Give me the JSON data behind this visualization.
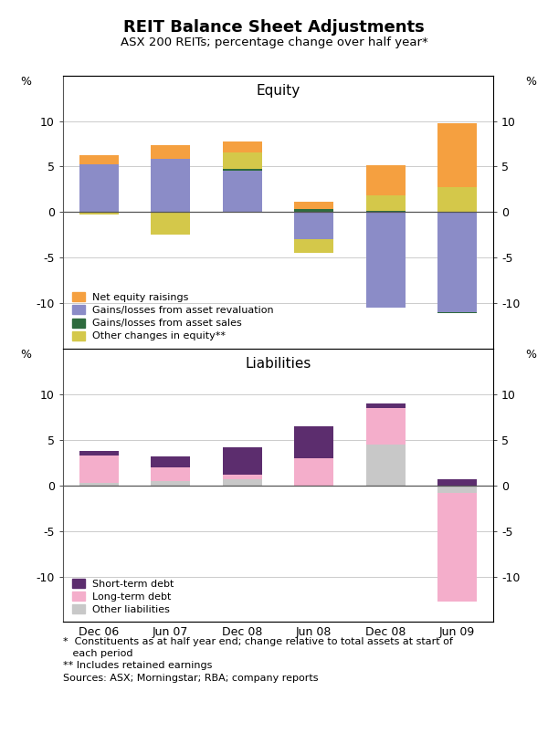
{
  "title": "REIT Balance Sheet Adjustments",
  "subtitle": "ASX 200 REITs; percentage change over half year*",
  "categories": [
    "Dec 06",
    "Jun 07",
    "Dec 08",
    "Jun 08",
    "Dec 08",
    "Jun 09"
  ],
  "equity": {
    "panel_label": "Equity",
    "net_equity_raisings": [
      1.0,
      1.5,
      1.2,
      0.8,
      3.3,
      7.0
    ],
    "asset_revaluation": [
      5.2,
      5.8,
      4.5,
      -3.0,
      -10.5,
      -11.0
    ],
    "asset_sales": [
      0.05,
      0.05,
      0.25,
      0.35,
      0.15,
      -0.1
    ],
    "other_changes": [
      -0.3,
      -2.5,
      1.8,
      -1.5,
      1.7,
      2.7
    ],
    "colors": {
      "net_equity_raisings": "#F5A040",
      "asset_revaluation": "#8B8CC7",
      "asset_sales": "#2E6B3E",
      "other_changes": "#D4C84A"
    },
    "legend": [
      "Net equity raisings",
      "Gains/losses from asset revaluation",
      "Gains/losses from asset sales",
      "Other changes in equity**"
    ]
  },
  "liabilities": {
    "panel_label": "Liabilities",
    "short_term_debt": [
      0.5,
      1.2,
      3.0,
      3.5,
      0.5,
      0.7
    ],
    "long_term_debt": [
      3.0,
      1.5,
      0.5,
      3.0,
      4.0,
      -12.0
    ],
    "other_liabilities": [
      0.3,
      0.5,
      0.7,
      0.0,
      4.5,
      -0.8
    ],
    "colors": {
      "short_term_debt": "#5C2D6E",
      "long_term_debt": "#F4AECB",
      "other_liabilities": "#C8C8C8"
    },
    "legend": [
      "Short-term debt",
      "Long-term debt",
      "Other liabilities"
    ]
  },
  "footnote1": "*  Constituents as at half year end; change relative to total assets at start of",
  "footnote2": "   each period",
  "footnote3": "** Includes retained earnings",
  "footnote4": "Sources: ASX; Morningstar; RBA; company reports"
}
